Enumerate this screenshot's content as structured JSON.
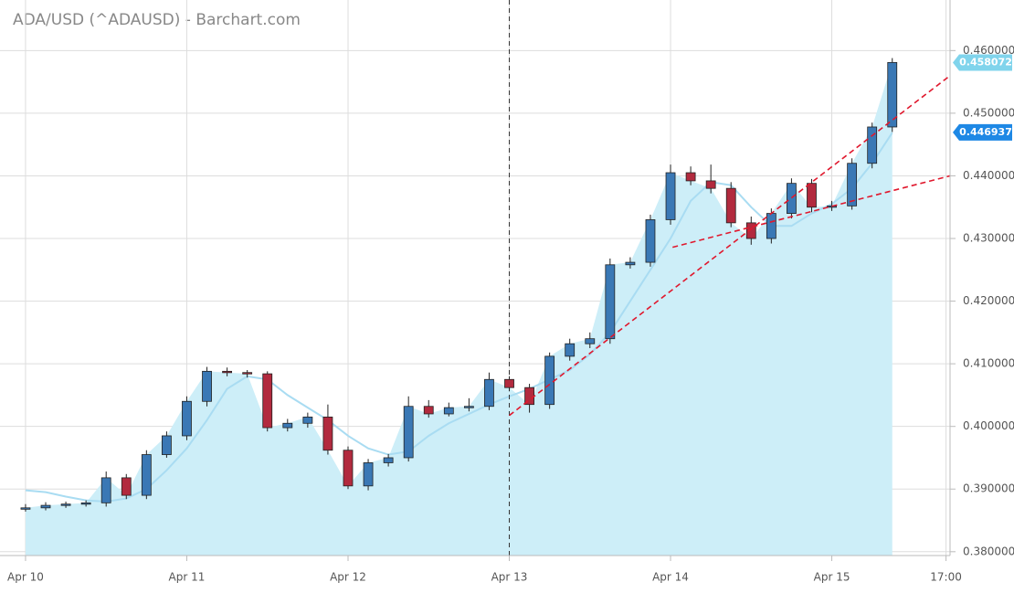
{
  "chart_data": {
    "type": "candlestick",
    "title": "ADA/USD (^ADAUSD) - Barchart.com",
    "x": [
      0,
      3,
      6,
      9,
      12,
      15,
      18,
      21,
      24,
      27,
      30,
      33,
      36,
      39,
      42,
      45,
      48,
      51,
      54,
      57,
      60,
      63,
      66,
      69,
      72,
      75,
      78,
      81,
      84,
      87,
      90,
      93,
      96,
      99,
      102,
      105,
      108,
      111,
      114,
      117,
      120,
      123,
      126,
      129
    ],
    "open": [
      0.3868,
      0.387,
      0.3874,
      0.3876,
      0.3878,
      0.3918,
      0.389,
      0.3955,
      0.3985,
      0.404,
      0.4088,
      0.4086,
      0.4084,
      0.3998,
      0.4005,
      0.4015,
      0.3962,
      0.3905,
      0.3942,
      0.395,
      0.4032,
      0.402,
      0.403,
      0.4032,
      0.4075,
      0.4062,
      0.4035,
      0.4112,
      0.4132,
      0.414,
      0.4258,
      0.4262,
      0.433,
      0.4405,
      0.4392,
      0.438,
      0.4325,
      0.43,
      0.434,
      0.4388,
      0.435,
      0.4352,
      0.442,
      0.4478
    ],
    "high": [
      0.3876,
      0.3879,
      0.388,
      0.3882,
      0.3928,
      0.3924,
      0.3962,
      0.3992,
      0.4048,
      0.4095,
      0.4094,
      0.409,
      0.4088,
      0.4012,
      0.4022,
      0.4035,
      0.3968,
      0.3948,
      0.3956,
      0.4048,
      0.4042,
      0.4038,
      0.4045,
      0.4086,
      0.408,
      0.4068,
      0.4118,
      0.414,
      0.415,
      0.4268,
      0.427,
      0.4338,
      0.4418,
      0.4415,
      0.4418,
      0.439,
      0.4335,
      0.4348,
      0.4396,
      0.4395,
      0.436,
      0.4428,
      0.4485,
      0.4588
    ],
    "low": [
      0.3864,
      0.3866,
      0.387,
      0.3872,
      0.3872,
      0.3884,
      0.3884,
      0.395,
      0.3978,
      0.4032,
      0.408,
      0.4078,
      0.3992,
      0.3992,
      0.3998,
      0.3955,
      0.39,
      0.3898,
      0.3936,
      0.3944,
      0.4014,
      0.4016,
      0.4024,
      0.4026,
      0.4056,
      0.4022,
      0.4028,
      0.4105,
      0.4125,
      0.4132,
      0.4252,
      0.4255,
      0.4322,
      0.4385,
      0.4372,
      0.4318,
      0.429,
      0.4292,
      0.4332,
      0.4342,
      0.4344,
      0.4346,
      0.4412,
      0.447
    ],
    "close": [
      0.387,
      0.3874,
      0.3876,
      0.3878,
      0.3918,
      0.389,
      0.3955,
      0.3985,
      0.404,
      0.4088,
      0.4086,
      0.4084,
      0.3998,
      0.4005,
      0.4015,
      0.3962,
      0.3905,
      0.3942,
      0.395,
      0.4032,
      0.402,
      0.403,
      0.4032,
      0.4075,
      0.4062,
      0.4035,
      0.4112,
      0.4132,
      0.414,
      0.4258,
      0.4262,
      0.433,
      0.4405,
      0.4392,
      0.438,
      0.4325,
      0.43,
      0.434,
      0.4388,
      0.435,
      0.4352,
      0.442,
      0.4478,
      0.4581
    ],
    "moving_average": [
      0.3898,
      0.3895,
      0.3888,
      0.3882,
      0.388,
      0.3885,
      0.39,
      0.393,
      0.3965,
      0.401,
      0.406,
      0.408,
      0.4075,
      0.405,
      0.403,
      0.401,
      0.3985,
      0.3965,
      0.3955,
      0.396,
      0.3985,
      0.4005,
      0.402,
      0.4035,
      0.4048,
      0.406,
      0.4075,
      0.409,
      0.4115,
      0.415,
      0.42,
      0.425,
      0.43,
      0.436,
      0.439,
      0.4385,
      0.435,
      0.432,
      0.432,
      0.434,
      0.4355,
      0.438,
      0.442,
      0.4469
    ],
    "up_color": "#3a78b5",
    "down_color": "#b22a3e",
    "area_color": "#cdeef8",
    "ma_color": "#a9dcf2",
    "xlim": [
      -3.8,
      137.6
    ],
    "xticks": [
      {
        "value": 0,
        "label": "Apr 10"
      },
      {
        "value": 24,
        "label": "Apr 11"
      },
      {
        "value": 48,
        "label": "Apr 12"
      },
      {
        "value": 72,
        "label": "Apr 13"
      },
      {
        "value": 96,
        "label": "Apr 14"
      },
      {
        "value": 120,
        "label": "Apr 15"
      },
      {
        "value": 137,
        "label": "17:00"
      }
    ],
    "ylim": [
      0.3772,
      0.4688
    ],
    "yticks": [
      {
        "value": 0.38,
        "label": "0.380000"
      },
      {
        "value": 0.39,
        "label": "0.390000"
      },
      {
        "value": 0.4,
        "label": "0.400000"
      },
      {
        "value": 0.41,
        "label": "0.410000"
      },
      {
        "value": 0.42,
        "label": "0.420000"
      },
      {
        "value": 0.43,
        "label": "0.430000"
      },
      {
        "value": 0.44,
        "label": "0.440000"
      },
      {
        "value": 0.45,
        "label": "0.450000"
      },
      {
        "value": 0.46,
        "label": "0.460000"
      }
    ],
    "grid": true,
    "price_tags": [
      {
        "value": 0.458072,
        "label": "0.458072",
        "color": "#80d4ec"
      },
      {
        "value": 0.446937,
        "label": "0.446937",
        "color": "#1e88e5"
      }
    ],
    "trendlines": [
      {
        "x": [
          72,
          137.6
        ],
        "y": [
          0.40175,
          0.456
        ]
      },
      {
        "x": [
          96.3,
          137.6
        ],
        "y": [
          0.4286,
          0.44
        ]
      }
    ],
    "trendline_color": "#e0182d",
    "session_marker_x": 72
  }
}
